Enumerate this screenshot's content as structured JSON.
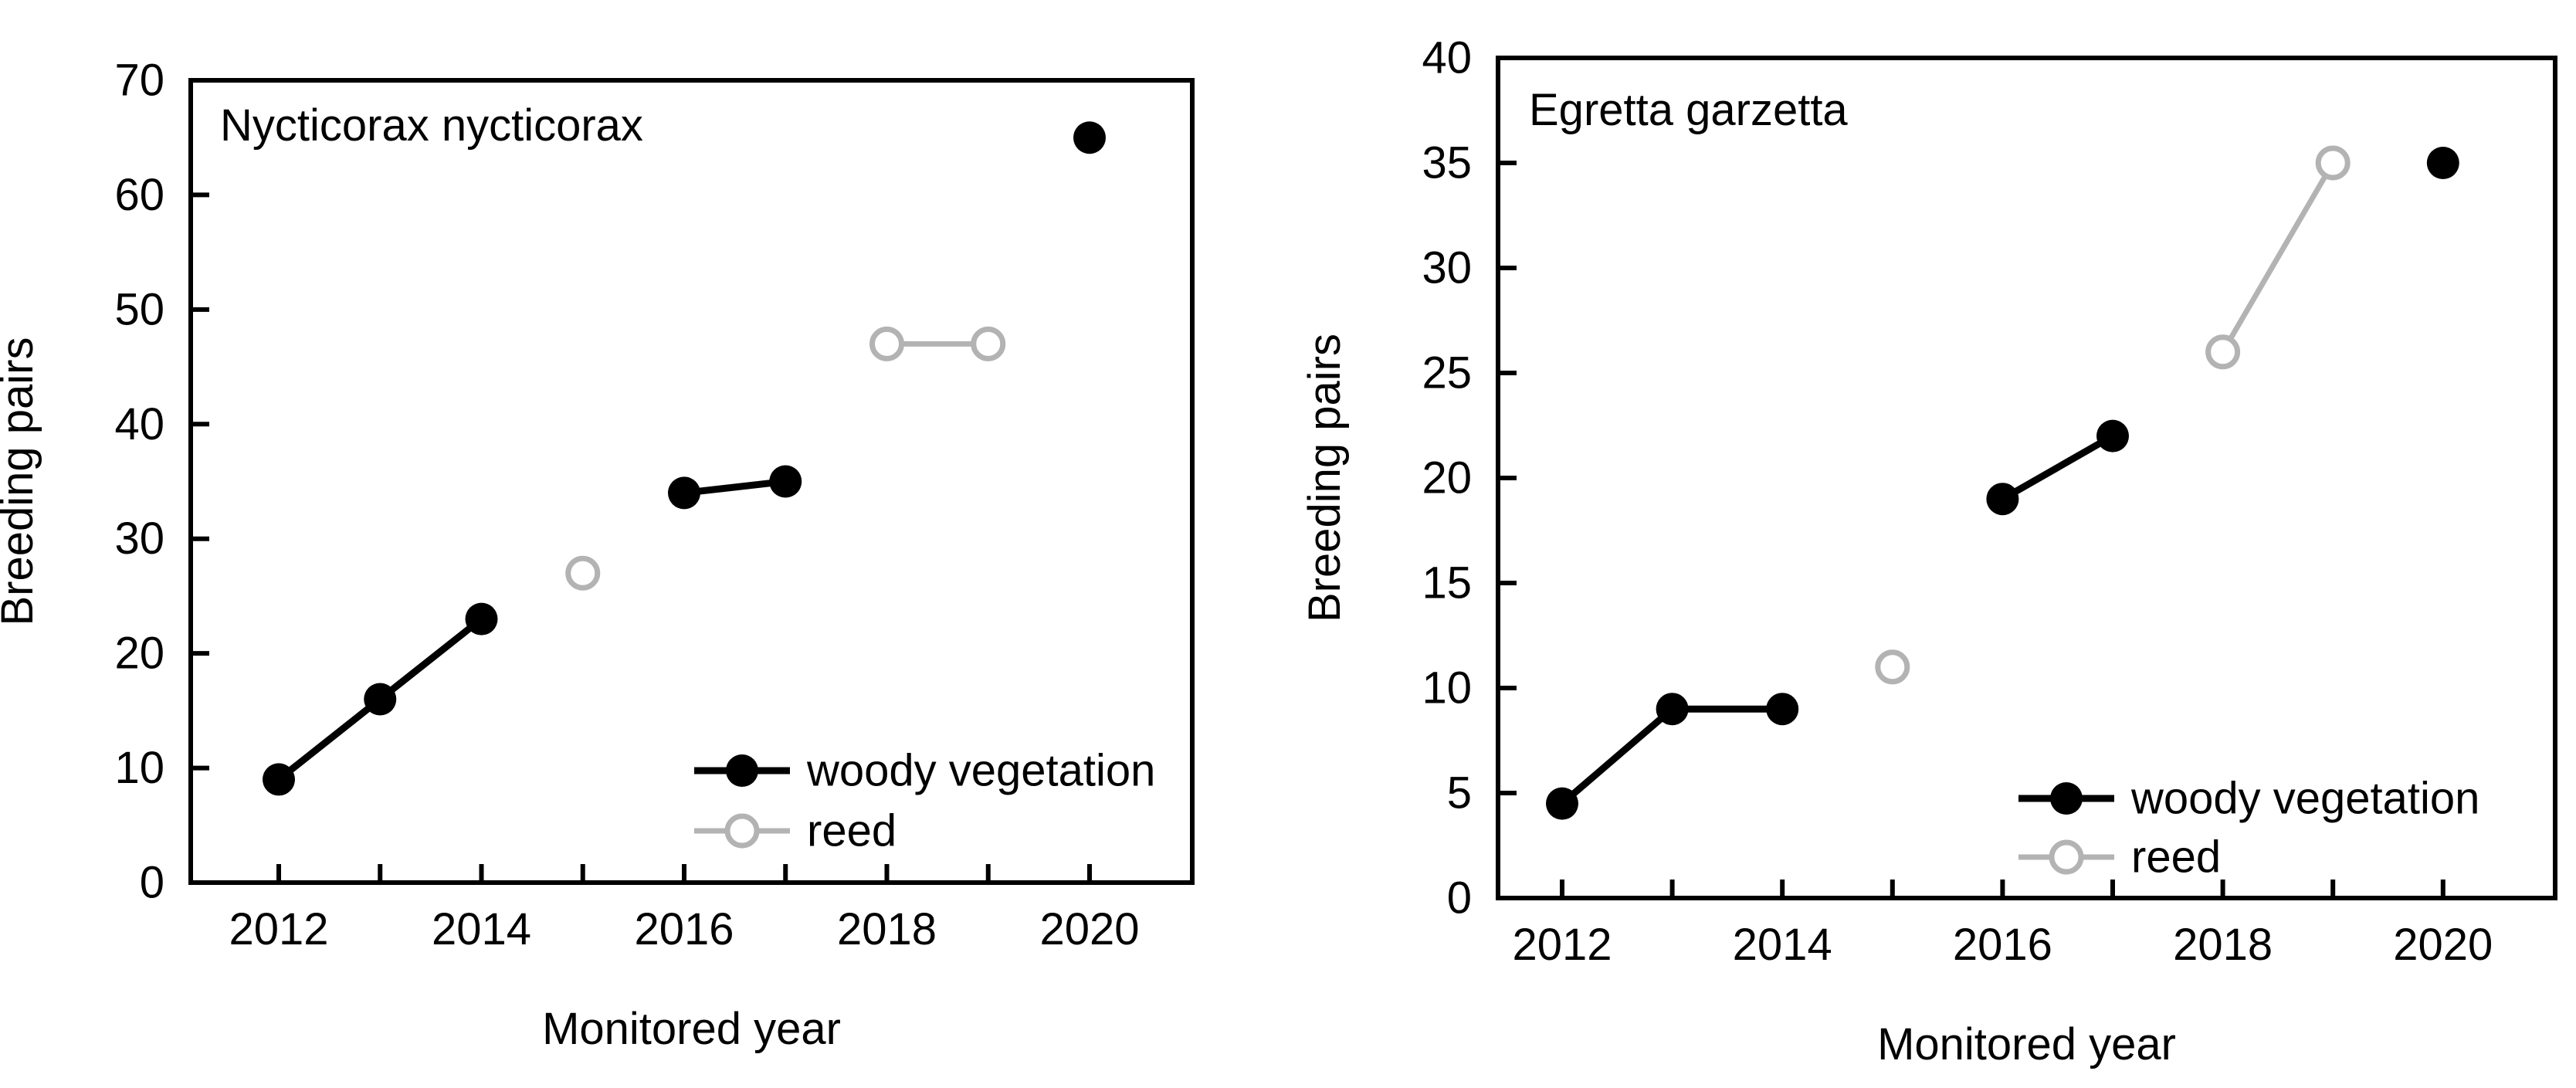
{
  "figure": {
    "background": "#ffffff",
    "text_color": "#000000",
    "series_colors": {
      "woody_vegetation": "#000000",
      "reed": "#b3b3b3"
    }
  },
  "chart_data": [
    {
      "type": "scatter",
      "title": "Nycticorax nycticorax",
      "xlabel": "Monitored year",
      "ylabel": "Breeding pairs",
      "ylim": [
        0,
        70
      ],
      "yticks": [
        0,
        10,
        20,
        30,
        40,
        50,
        60,
        70
      ],
      "xticks": [
        2012,
        2013,
        2014,
        2015,
        2016,
        2017,
        2018,
        2019,
        2020
      ],
      "xtick_labels": [
        2012,
        2014,
        2016,
        2018,
        2020
      ],
      "grid": "off",
      "legend_position": "inside-bottom-right",
      "series": [
        {
          "name": "woody vegetation",
          "color": "#000000",
          "marker": "filled-circle",
          "segments": [
            {
              "x": [
                2012,
                2013,
                2014
              ],
              "y": [
                9,
                16,
                23
              ]
            },
            {
              "x": [
                2016,
                2017
              ],
              "y": [
                34,
                35
              ]
            },
            {
              "x": [
                2020
              ],
              "y": [
                65
              ]
            }
          ]
        },
        {
          "name": "reed",
          "color": "#b3b3b3",
          "marker": "open-circle",
          "segments": [
            {
              "x": [
                2015
              ],
              "y": [
                27
              ]
            },
            {
              "x": [
                2018,
                2019
              ],
              "y": [
                47,
                47
              ]
            }
          ]
        }
      ]
    },
    {
      "type": "scatter",
      "title": "Egretta garzetta",
      "xlabel": "Monitored year",
      "ylabel": "Breeding pairs",
      "ylim": [
        0,
        40
      ],
      "yticks": [
        0,
        5,
        10,
        15,
        20,
        25,
        30,
        35,
        40
      ],
      "xticks": [
        2012,
        2013,
        2014,
        2015,
        2016,
        2017,
        2018,
        2019,
        2020
      ],
      "xtick_labels": [
        2012,
        2014,
        2016,
        2018,
        2020
      ],
      "grid": "off",
      "legend_position": "inside-bottom-right",
      "series": [
        {
          "name": "woody vegetation",
          "color": "#000000",
          "marker": "filled-circle",
          "segments": [
            {
              "x": [
                2012,
                2013,
                2014
              ],
              "y": [
                4.5,
                9,
                9
              ]
            },
            {
              "x": [
                2016,
                2017
              ],
              "y": [
                19,
                22
              ]
            },
            {
              "x": [
                2020
              ],
              "y": [
                35
              ]
            }
          ]
        },
        {
          "name": "reed",
          "color": "#b3b3b3",
          "marker": "open-circle",
          "segments": [
            {
              "x": [
                2015
              ],
              "y": [
                11
              ]
            },
            {
              "x": [
                2018,
                2019
              ],
              "y": [
                26,
                35
              ]
            }
          ]
        }
      ]
    }
  ]
}
